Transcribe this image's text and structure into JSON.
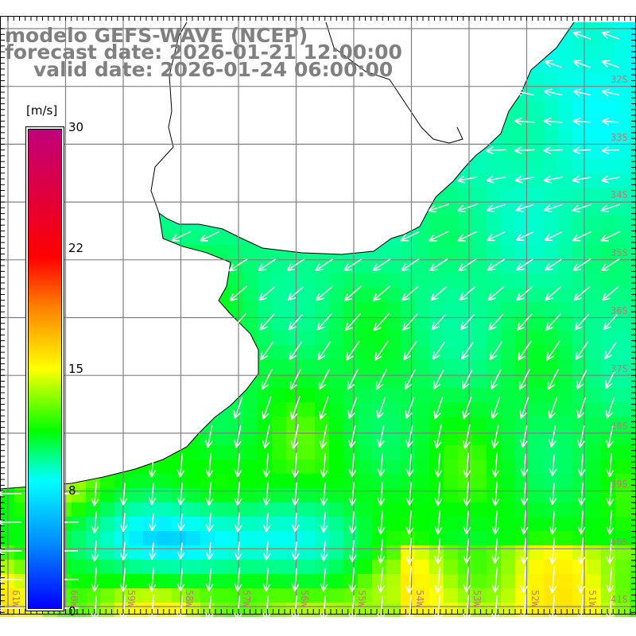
{
  "title": {
    "line1": "modelo GEFS-WAVE (NCEP)",
    "line2": "forecast date: 2026-01-21 12:00:00",
    "line3": "valid date: 2026-01-24 06:00:00"
  },
  "colorbar": {
    "unit": "[m/s]",
    "ticks": [
      "30",
      "22",
      "15",
      "8",
      "0"
    ],
    "colors": {
      "0": "#0000ff",
      "8": "#00ffff",
      "15": "#ffff00",
      "22": "#ff0000",
      "30": "#c0007a"
    }
  },
  "axes": {
    "latitudes": [
      "32S",
      "33S",
      "34S",
      "35S",
      "36S",
      "37S",
      "38S",
      "39S",
      "40S",
      "41S"
    ],
    "longitudes": [
      "61W",
      "60W",
      "59W",
      "58W",
      "57W",
      "56W",
      "55W",
      "54W",
      "53W",
      "52W",
      "51W"
    ]
  }
}
